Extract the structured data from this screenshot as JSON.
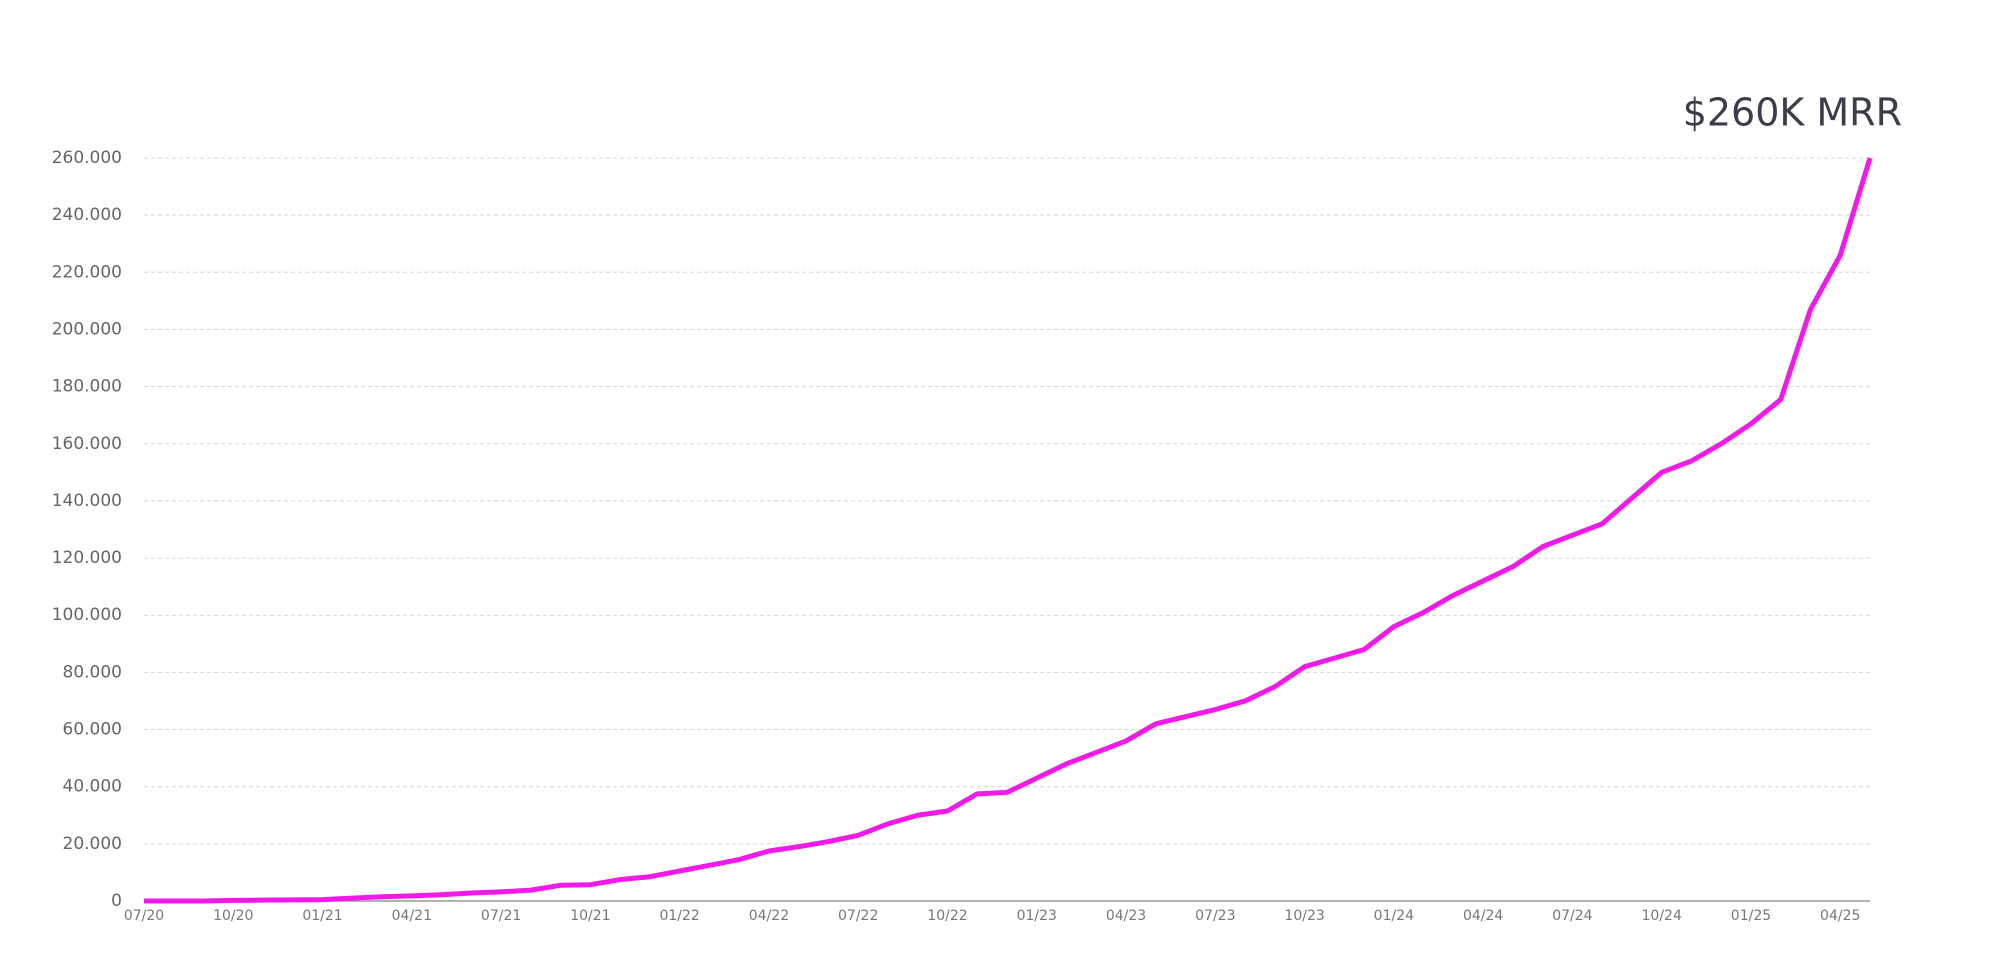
{
  "chart_data": {
    "type": "line",
    "title": "$260K MRR",
    "categories": [
      "07/20",
      null,
      null,
      "10/20",
      null,
      null,
      "01/21",
      null,
      null,
      "04/21",
      null,
      null,
      "07/21",
      null,
      null,
      "10/21",
      null,
      null,
      "01/22",
      null,
      null,
      "04/22",
      null,
      null,
      "07/22",
      null,
      null,
      "10/22",
      null,
      null,
      "01/23",
      null,
      null,
      "04/23",
      null,
      null,
      "07/23",
      null,
      null,
      "10/23",
      null,
      null,
      "01/24",
      null,
      null,
      "04/24",
      null,
      null,
      "07/24",
      null,
      null,
      "10/24",
      null,
      null,
      "01/25",
      null,
      null,
      "04/25",
      null
    ],
    "series": [
      {
        "color": "#f21ae8",
        "values": [
          0,
          0,
          0,
          200,
          300,
          400,
          500,
          1000,
          1500,
          1800,
          2200,
          2800,
          3200,
          3800,
          5500,
          5700,
          7500,
          8500,
          10500,
          12500,
          14500,
          17500,
          19000,
          20800,
          23000,
          27000,
          30000,
          31500,
          37500,
          38000,
          43000,
          48000,
          52000,
          56000,
          62000,
          64500,
          67000,
          70000,
          75000,
          82000,
          85000,
          88000,
          96000,
          101000,
          107000,
          112000,
          117000,
          124000,
          128000,
          132000,
          141000,
          150000,
          154000,
          160000,
          167000,
          175500,
          207000,
          226000,
          260000
        ]
      }
    ],
    "ylim": [
      0,
      260000
    ],
    "yticks": [
      0,
      {
        "value": 20000,
        "label": "20.000"
      },
      {
        "value": 40000,
        "label": "40.000"
      },
      {
        "value": 60000,
        "label": "60.000"
      },
      {
        "value": 80000,
        "label": "80.000"
      },
      {
        "value": 100000,
        "label": "100.000"
      },
      {
        "value": 120000,
        "label": "120.000"
      },
      {
        "value": 140000,
        "label": "140.000"
      },
      {
        "value": 160000,
        "label": "160.000"
      },
      {
        "value": 180000,
        "label": "180.000"
      },
      {
        "value": 200000,
        "label": "200.000"
      },
      {
        "value": 220000,
        "label": "220.000"
      },
      {
        "value": 240000,
        "label": "240.000"
      },
      {
        "value": 260000,
        "label": "260.000"
      }
    ],
    "grid": true
  }
}
